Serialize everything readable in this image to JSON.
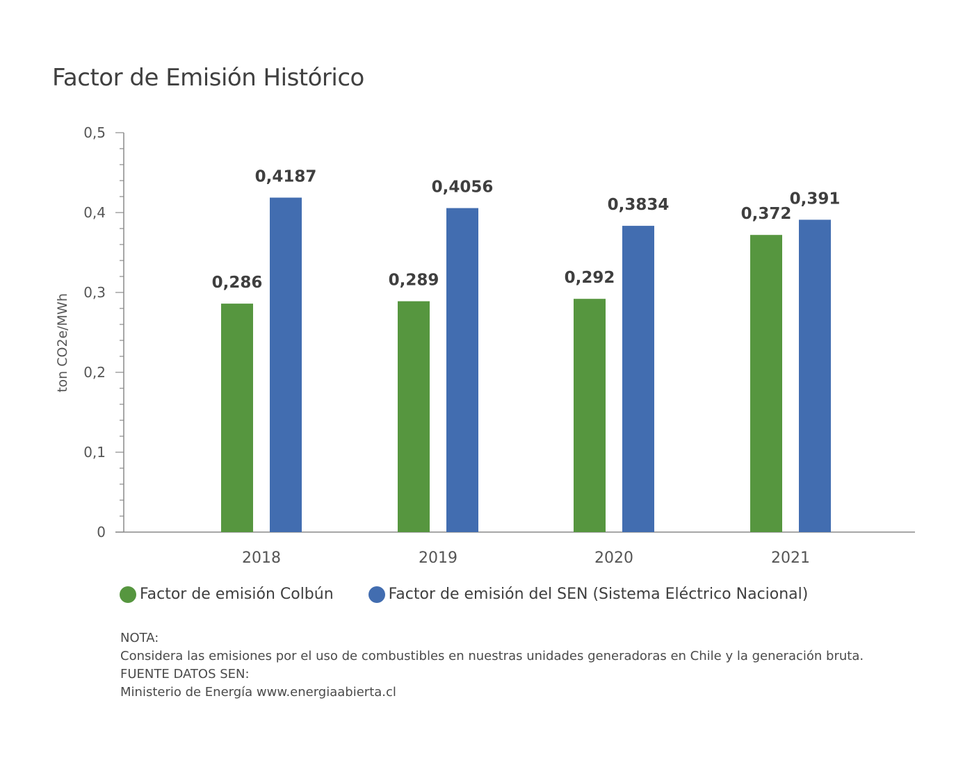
{
  "title": "Factor de Emisión Histórico",
  "chart_data": {
    "type": "bar",
    "title": "Factor de Emisión Histórico",
    "ylabel": "ton CO2e/MWh",
    "xlabel": "",
    "ylim": [
      0,
      0.5
    ],
    "yticks": [
      "0",
      "0,1",
      "0,2",
      "0,3",
      "0,4",
      "0,5"
    ],
    "categories": [
      "2018",
      "2019",
      "2020",
      "2021"
    ],
    "series": [
      {
        "name": "Factor de emisión Colbún",
        "color": "#56963f",
        "values": [
          0.286,
          0.289,
          0.292,
          0.372
        ],
        "labels": [
          "0,286",
          "0,289",
          "0,292",
          "0,372"
        ]
      },
      {
        "name": "Factor de emisión del SEN (Sistema Eléctrico Nacional)",
        "color": "#426db0",
        "values": [
          0.4187,
          0.4056,
          0.3834,
          0.391
        ],
        "labels": [
          "0,4187",
          "0,4056",
          "0,3834",
          "0,391"
        ]
      }
    ],
    "grid": false,
    "legend": "bottom"
  },
  "notes": {
    "nota_heading": "NOTA:",
    "nota_text": "Considera las emisiones por el uso de combustibles en nuestras unidades generadoras en Chile y la generación bruta.",
    "fuente_heading": "FUENTE DATOS SEN:",
    "fuente_text": "Ministerio de Energía www.energiaabierta.cl"
  }
}
